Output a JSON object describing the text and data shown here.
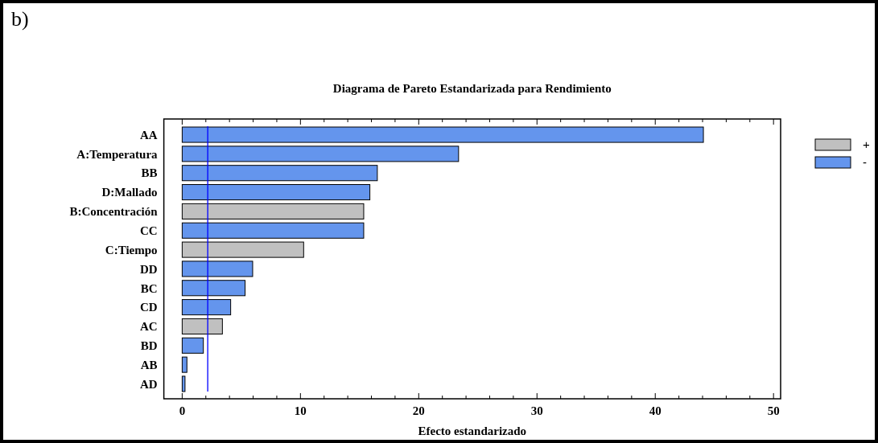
{
  "chart_data": {
    "type": "bar",
    "orientation": "horizontal",
    "title": "Diagrama de Pareto Estandarizada para Rendimiento",
    "xlabel": "Efecto estandarizado",
    "annotations": [
      "b)"
    ],
    "categories": [
      "AA",
      "A:Temperatura",
      "BB",
      "D:Mallado",
      "B:Concentración",
      "CC",
      "C:Tiempo",
      "DD",
      "BC",
      "CD",
      "AC",
      "BD",
      "AB",
      "AD"
    ],
    "series": [
      {
        "name": "+",
        "color": "#c0c0c0",
        "values": [
          null,
          null,
          null,
          null,
          15.35,
          null,
          10.27,
          null,
          null,
          null,
          3.4,
          null,
          null,
          null
        ]
      },
      {
        "name": "-",
        "color": "#6495ed",
        "values": [
          44.07,
          23.37,
          16.5,
          15.87,
          null,
          15.35,
          null,
          5.96,
          5.32,
          4.1,
          null,
          1.79,
          0.4,
          0.24
        ]
      }
    ],
    "xlim": [
      -1.55,
      50.6
    ],
    "xticks": [
      0,
      {
        "value": 2,
        "label": null
      },
      {
        "value": 4,
        "label": null
      },
      {
        "value": 6,
        "label": null
      },
      {
        "value": 8,
        "label": null
      },
      10,
      {
        "value": 12,
        "label": null
      },
      {
        "value": 14,
        "label": null
      },
      {
        "value": 16,
        "label": null
      },
      {
        "value": 18,
        "label": null
      },
      20,
      {
        "value": 22,
        "label": null
      },
      {
        "value": 24,
        "label": null
      },
      {
        "value": 26,
        "label": null
      },
      {
        "value": 28,
        "label": null
      },
      30,
      {
        "value": 32,
        "label": null
      },
      {
        "value": 34,
        "label": null
      },
      {
        "value": 36,
        "label": null
      },
      {
        "value": 38,
        "label": null
      },
      40,
      {
        "value": 42,
        "label": null
      },
      {
        "value": 44,
        "label": null
      },
      {
        "value": 46,
        "label": null
      },
      {
        "value": 48,
        "label": null
      },
      50
    ],
    "ref_lines": [
      {
        "axis": "x",
        "value": 2.16,
        "color": "#0000ff"
      }
    ],
    "legend": "right",
    "grid": false
  }
}
